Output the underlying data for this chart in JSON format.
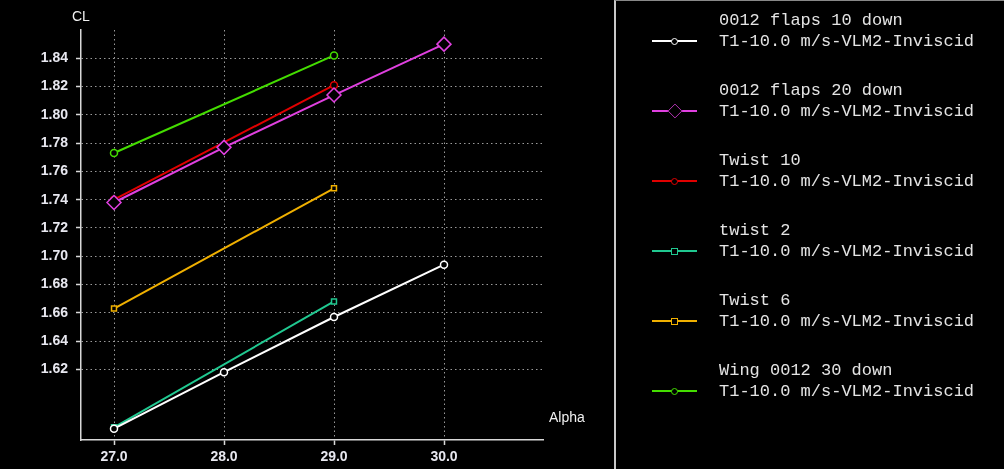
{
  "chart_data": {
    "type": "line",
    "xlabel": "Alpha",
    "ylabel": "CL",
    "xlim": [
      26.7,
      30.9
    ],
    "ylim": [
      1.57,
      1.86
    ],
    "xticks": [
      {
        "value": 27,
        "label": "27.0"
      },
      {
        "value": 28,
        "label": "28.0"
      },
      {
        "value": 29,
        "label": "29.0"
      },
      {
        "value": 30,
        "label": "30.0"
      }
    ],
    "yticks": [
      1.62,
      1.64,
      1.66,
      1.68,
      {
        "value": 1.7,
        "label": "1.70"
      },
      1.72,
      1.74,
      1.76,
      1.78,
      {
        "value": 1.8,
        "label": "1.80"
      },
      1.82,
      1.84
    ],
    "grid": true,
    "legend": "right",
    "series": [
      {
        "name": "0012 flaps 10 down\nT1-10.0 m/s-VLM2-Inviscid",
        "color": "#ffffff",
        "marker": "circle",
        "x": [
          27,
          28,
          29,
          30
        ],
        "values": [
          1.578,
          1.618,
          1.657,
          1.694
        ]
      },
      {
        "name": "0012 flaps 20 down\nT1-10.0 m/s-VLM2-Inviscid",
        "color": "#e040e0",
        "marker": "diamond",
        "x": [
          27,
          28,
          29,
          30
        ],
        "values": [
          1.738,
          1.777,
          1.814,
          1.85
        ]
      },
      {
        "name": "Twist 10\nT1-10.0 m/s-VLM2-Inviscid",
        "color": "#e00000",
        "marker": "circle",
        "x": [
          27,
          29
        ],
        "values": [
          1.74,
          1.821
        ]
      },
      {
        "name": "twist 2\nT1-10.0 m/s-VLM2-Inviscid",
        "color": "#20c890",
        "marker": "square",
        "x": [
          27,
          29
        ],
        "values": [
          1.579,
          1.668
        ]
      },
      {
        "name": "Twist 6\nT1-10.0 m/s-VLM2-Inviscid",
        "color": "#f0b000",
        "marker": "square",
        "x": [
          27,
          29
        ],
        "values": [
          1.663,
          1.748
        ]
      },
      {
        "name": "Wing 0012 30 down\nT1-10.0 m/s-VLM2-Inviscid",
        "color": "#44dd00",
        "marker": "circle",
        "x": [
          27,
          29
        ],
        "values": [
          1.773,
          1.842
        ]
      }
    ]
  }
}
